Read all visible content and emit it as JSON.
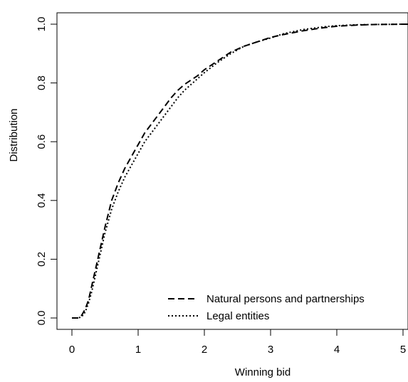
{
  "chart_data": {
    "type": "line",
    "title": "",
    "xlabel": "Winning bid",
    "ylabel": "Distribution",
    "xlim": [
      0,
      5.1
    ],
    "ylim": [
      0,
      1.0
    ],
    "xticks": [
      0,
      1,
      2,
      3,
      4,
      5
    ],
    "xtick_labels": [
      "0",
      "1",
      "2",
      "3",
      "4",
      "5"
    ],
    "yticks": [
      0.0,
      0.2,
      0.4,
      0.6,
      0.8,
      1.0
    ],
    "ytick_labels": [
      "0.0",
      "0.2",
      "0.4",
      "0.6",
      "0.8",
      "1.0"
    ],
    "grid": false,
    "legend_position": "bottom-right",
    "series": [
      {
        "name": "Natural persons and partnerships",
        "line_style": "dashed",
        "color": "#000000",
        "x": [
          0,
          0.1,
          0.15,
          0.2,
          0.25,
          0.3,
          0.4,
          0.5,
          0.6,
          0.7,
          0.8,
          0.9,
          1.0,
          1.1,
          1.2,
          1.3,
          1.4,
          1.5,
          1.6,
          1.7,
          1.8,
          1.9,
          2.0,
          2.2,
          2.4,
          2.6,
          2.8,
          3.0,
          3.2,
          3.5,
          3.8,
          4.0,
          4.3,
          4.6,
          5.0,
          5.1
        ],
        "y": [
          0.0,
          0.0,
          0.01,
          0.03,
          0.06,
          0.11,
          0.21,
          0.31,
          0.4,
          0.46,
          0.51,
          0.55,
          0.59,
          0.63,
          0.66,
          0.69,
          0.72,
          0.75,
          0.775,
          0.795,
          0.81,
          0.825,
          0.845,
          0.875,
          0.905,
          0.925,
          0.94,
          0.955,
          0.965,
          0.978,
          0.988,
          0.993,
          0.997,
          0.999,
          1.0,
          1.0
        ]
      },
      {
        "name": "Legal entities",
        "line_style": "dotted",
        "color": "#000000",
        "x": [
          0,
          0.1,
          0.15,
          0.2,
          0.25,
          0.3,
          0.4,
          0.5,
          0.6,
          0.7,
          0.8,
          0.9,
          1.0,
          1.1,
          1.2,
          1.3,
          1.4,
          1.5,
          1.6,
          1.7,
          1.8,
          1.9,
          2.0,
          2.2,
          2.4,
          2.6,
          2.8,
          3.0,
          3.2,
          3.5,
          3.8,
          4.0,
          4.3,
          4.6,
          5.0,
          5.1
        ],
        "y": [
          0.0,
          0.0,
          0.005,
          0.02,
          0.05,
          0.09,
          0.19,
          0.29,
          0.37,
          0.43,
          0.48,
          0.52,
          0.56,
          0.6,
          0.63,
          0.66,
          0.69,
          0.72,
          0.75,
          0.775,
          0.795,
          0.815,
          0.835,
          0.87,
          0.9,
          0.925,
          0.94,
          0.953,
          0.968,
          0.982,
          0.991,
          0.995,
          0.998,
          0.999,
          1.0,
          1.0
        ]
      }
    ]
  }
}
